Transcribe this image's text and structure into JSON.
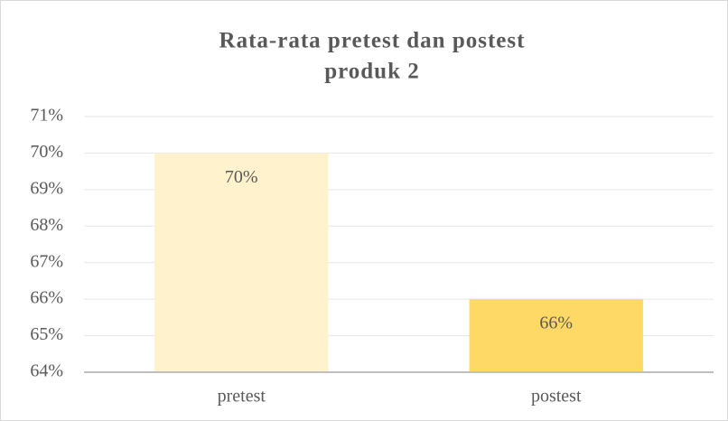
{
  "chart_data": {
    "type": "bar",
    "title": [
      "Rata-rata pretest dan postest",
      "produk 2"
    ],
    "categories": [
      "pretest",
      "postest"
    ],
    "values": [
      70,
      66
    ],
    "value_labels": [
      "70%",
      "66%"
    ],
    "colors": [
      "#fff2cc",
      "#ffd966"
    ],
    "ylim": [
      64,
      71
    ],
    "yticks": [
      {
        "value": 64,
        "label": "64%"
      },
      {
        "value": 65,
        "label": "65%"
      },
      {
        "value": 66,
        "label": "66%"
      },
      {
        "value": 67,
        "label": "67%"
      },
      {
        "value": 68,
        "label": "68%"
      },
      {
        "value": 69,
        "label": "69%"
      },
      {
        "value": 70,
        "label": "70%"
      },
      {
        "value": 71,
        "label": "71%"
      }
    ],
    "grid": true
  }
}
